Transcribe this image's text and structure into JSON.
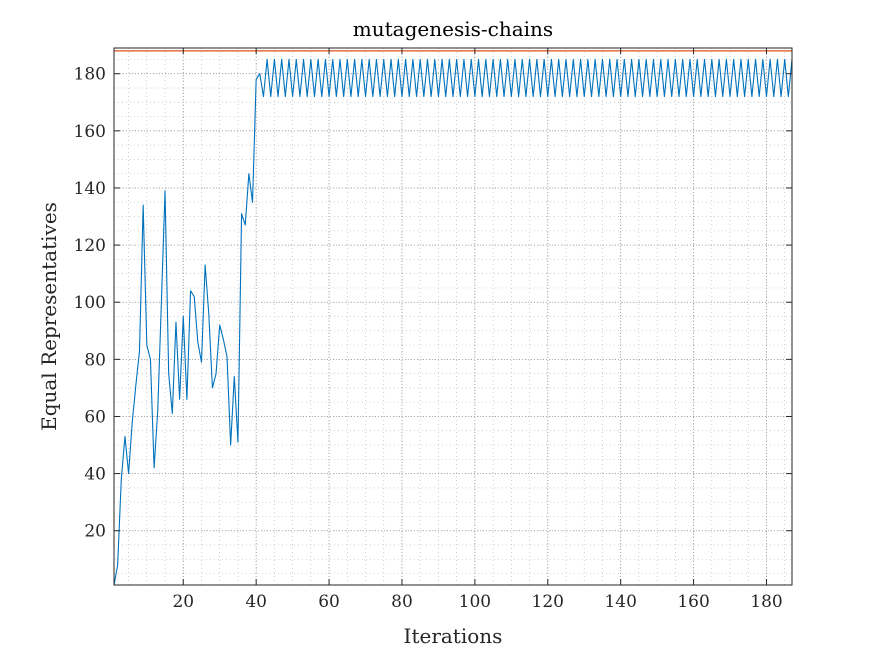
{
  "chart_data": {
    "type": "line",
    "title": "mutagenesis-chains",
    "xlabel": "Iterations",
    "ylabel": "Equal Representatives",
    "xlim": [
      1,
      187
    ],
    "ylim": [
      1,
      189
    ],
    "xticks": [
      20,
      40,
      60,
      80,
      100,
      120,
      140,
      160,
      180
    ],
    "yticks": [
      20,
      40,
      60,
      80,
      100,
      120,
      140,
      160,
      180
    ],
    "minor_x_step": 5,
    "minor_y_step": 5,
    "grid": true,
    "colors": {
      "series": "#0072BD",
      "reference": "#D95319",
      "axis": "#262626",
      "grid": "#bdbdbd"
    },
    "reference_line": {
      "y": 188,
      "label": ""
    },
    "series": [
      {
        "name": "Equal Representatives",
        "x_start": 1,
        "values": [
          1,
          8,
          38,
          53,
          40,
          58,
          71,
          83,
          134,
          85,
          80,
          42,
          62,
          100,
          139,
          75,
          61,
          93,
          66,
          95,
          66,
          104,
          102,
          86,
          79,
          113,
          96,
          70,
          75,
          92,
          87,
          81,
          50,
          74,
          51,
          131,
          127,
          145,
          135,
          178,
          180,
          172,
          185,
          172,
          185,
          172,
          185,
          172,
          185,
          172,
          185,
          172,
          185,
          172,
          185,
          172,
          185,
          172,
          185,
          172,
          185,
          172,
          185,
          172,
          185,
          172,
          185,
          172,
          185,
          172,
          185,
          172,
          185,
          172,
          185,
          172,
          185,
          172,
          185,
          172,
          185,
          172,
          185,
          172,
          185,
          172,
          185,
          172,
          185,
          172,
          185,
          172,
          185,
          172,
          185,
          172,
          185,
          172,
          185,
          172,
          185,
          172,
          185,
          172,
          185,
          172,
          185,
          172,
          185,
          172,
          185,
          172,
          185,
          172,
          185,
          172,
          185,
          172,
          185,
          172,
          185,
          172,
          185,
          172,
          185,
          172,
          185,
          172,
          185,
          172,
          185,
          172,
          185,
          172,
          185,
          172,
          185,
          172,
          185,
          172,
          185,
          172,
          185,
          172,
          185,
          172,
          185,
          172,
          185,
          172,
          185,
          172,
          185,
          172,
          185,
          172,
          185,
          172,
          185,
          172,
          185,
          172,
          185,
          172,
          185,
          172,
          185,
          172,
          185,
          172,
          185,
          172,
          185,
          172,
          185,
          172,
          185,
          172,
          185,
          172,
          185,
          172,
          185,
          172,
          185,
          172,
          185
        ]
      }
    ]
  }
}
